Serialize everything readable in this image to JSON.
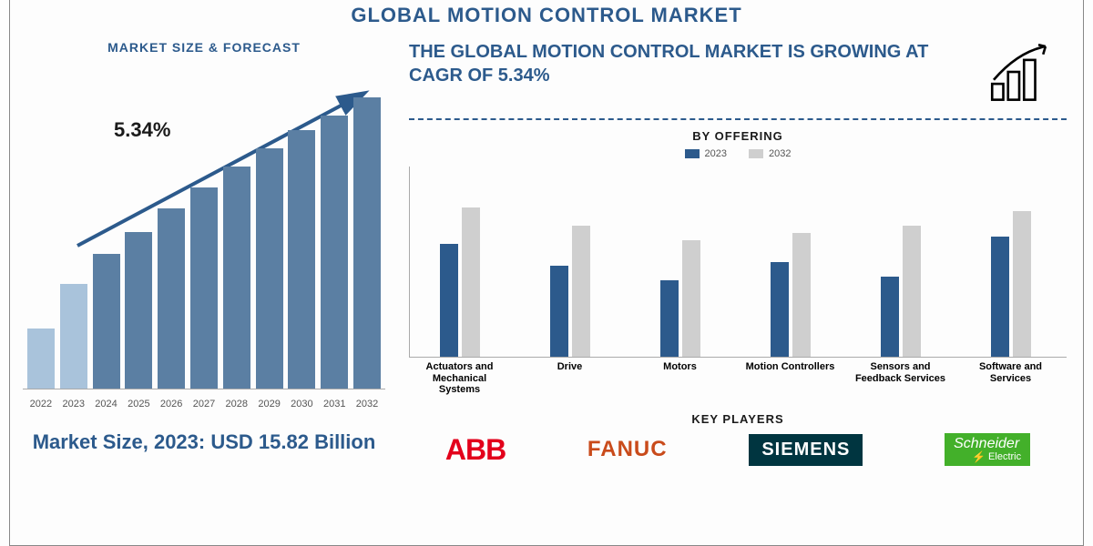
{
  "colors": {
    "title": "#2c5a8c",
    "subhead": "#2c5a8c",
    "bar_dark": "#5b7fa3",
    "bar_light": "#a9c3db",
    "grouped_2023": "#2c5a8c",
    "grouped_2032": "#cfcfcf",
    "text": "#1a1a1a",
    "axis": "#aaaaaa",
    "dash": "#2c5a8c",
    "abb": "#e3001b",
    "fanuc": "#c94b1b",
    "siemens_bg": "#003540",
    "siemens_fg": "#ffffff",
    "schneider_bg": "#43b02a",
    "schneider_fg": "#ffffff"
  },
  "header": {
    "title": "GLOBAL MOTION CONTROL MARKET"
  },
  "left": {
    "subhead": "MARKET SIZE & FORECAST",
    "cagr_label": "5.34%",
    "market_size_line": "Market Size, 2023: USD 15.82 Billion",
    "chart": {
      "type": "bar",
      "years": [
        "2022",
        "2023",
        "2024",
        "2025",
        "2026",
        "2027",
        "2028",
        "2029",
        "2030",
        "2031",
        "2032"
      ],
      "heights_pct": [
        20,
        35,
        45,
        52,
        60,
        67,
        74,
        80,
        86,
        91,
        97
      ],
      "light_indices": [
        0,
        1
      ],
      "label_fontsize": 11
    }
  },
  "right": {
    "growth_line": "THE GLOBAL MOTION CONTROL MARKET IS GROWING AT CAGR OF 5.34%",
    "by_offering_title": "BY OFFERING",
    "legend": {
      "a": "2023",
      "b": "2032"
    },
    "offering_chart": {
      "type": "grouped-bar",
      "categories": [
        "Actuators and Mechanical Systems",
        "Drive",
        "Motors",
        "Motion Controllers",
        "Sensors and Feedback Services",
        "Software and Services"
      ],
      "series": {
        "2023": [
          62,
          50,
          42,
          52,
          44,
          66
        ],
        "2032": [
          82,
          72,
          64,
          68,
          72,
          80
        ]
      },
      "label_fontsize": 11
    },
    "key_players_title": "KEY PLAYERS",
    "logos": {
      "abb": "ABB",
      "fanuc": "FANUC",
      "siemens": "SIEMENS",
      "schneider_top": "Schneider",
      "schneider_bot": "Electric"
    }
  }
}
